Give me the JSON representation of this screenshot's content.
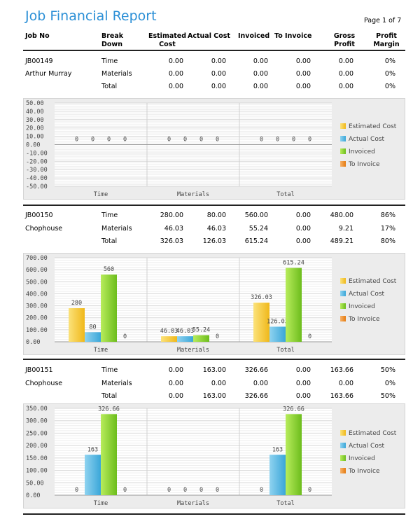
{
  "report": {
    "title": "Job Financial Report",
    "page": "Page 1 of 7"
  },
  "columns": [
    "Job No",
    "Break Down",
    "Estimated Cost",
    "Actual Cost",
    "Invoiced",
    "To Invoice",
    "Gross Profit",
    "Profit Margin"
  ],
  "jobs": [
    {
      "job_no": "JB00149",
      "client": "Arthur Murray",
      "rows": [
        {
          "breakdown": "Time",
          "est": "0.00",
          "act": "0.00",
          "inv": "0.00",
          "toinv": "0.00",
          "gp": "0.00",
          "pm": "0%"
        },
        {
          "breakdown": "Materials",
          "est": "0.00",
          "act": "0.00",
          "inv": "0.00",
          "toinv": "0.00",
          "gp": "0.00",
          "pm": "0%"
        },
        {
          "breakdown": "Total",
          "est": "0.00",
          "act": "0.00",
          "inv": "0.00",
          "toinv": "0.00",
          "gp": "0.00",
          "pm": "0%"
        }
      ]
    },
    {
      "job_no": "JB00150",
      "client": "Chophouse",
      "rows": [
        {
          "breakdown": "Time",
          "est": "280.00",
          "act": "80.00",
          "inv": "560.00",
          "toinv": "0.00",
          "gp": "480.00",
          "pm": "86%"
        },
        {
          "breakdown": "Materials",
          "est": "46.03",
          "act": "46.03",
          "inv": "55.24",
          "toinv": "0.00",
          "gp": "9.21",
          "pm": "17%"
        },
        {
          "breakdown": "Total",
          "est": "326.03",
          "act": "126.03",
          "inv": "615.24",
          "toinv": "0.00",
          "gp": "489.21",
          "pm": "80%"
        }
      ]
    },
    {
      "job_no": "JB00151",
      "client": "Chophouse",
      "rows": [
        {
          "breakdown": "Time",
          "est": "0.00",
          "act": "163.00",
          "inv": "326.66",
          "toinv": "0.00",
          "gp": "163.66",
          "pm": "50%"
        },
        {
          "breakdown": "Materials",
          "est": "0.00",
          "act": "0.00",
          "inv": "0.00",
          "toinv": "0.00",
          "gp": "0.00",
          "pm": "0%"
        },
        {
          "breakdown": "Total",
          "est": "0.00",
          "act": "163.00",
          "inv": "326.66",
          "toinv": "0.00",
          "gp": "163.66",
          "pm": "50%"
        }
      ]
    }
  ],
  "chart_data": [
    {
      "type": "bar",
      "categories": [
        "Time",
        "Materials",
        "Total"
      ],
      "series": [
        {
          "name": "Estimated Cost",
          "values": [
            0,
            0,
            0
          ]
        },
        {
          "name": "Actual Cost",
          "values": [
            0,
            0,
            0
          ]
        },
        {
          "name": "Invoiced",
          "values": [
            0,
            0,
            0
          ]
        },
        {
          "name": "To Invoice",
          "values": [
            0,
            0,
            0
          ]
        }
      ],
      "ylim": [
        -50,
        50
      ],
      "yticks": [
        "50.00",
        "40.00",
        "30.00",
        "20.00",
        "10.00",
        "0.00",
        "-10.00",
        "-20.00",
        "-30.00",
        "-40.00",
        "-50.00"
      ],
      "data_labels": [
        [
          "0",
          "0",
          "0",
          "0"
        ],
        [
          "0",
          "0",
          "0",
          "0"
        ],
        [
          "0",
          "0",
          "0",
          "0"
        ]
      ],
      "legend": "right",
      "grid": true
    },
    {
      "type": "bar",
      "categories": [
        "Time",
        "Materials",
        "Total"
      ],
      "series": [
        {
          "name": "Estimated Cost",
          "values": [
            280,
            46.03,
            326.03
          ]
        },
        {
          "name": "Actual Cost",
          "values": [
            80,
            46.03,
            126.03
          ]
        },
        {
          "name": "Invoiced",
          "values": [
            560,
            55.24,
            615.24
          ]
        },
        {
          "name": "To Invoice",
          "values": [
            0,
            0,
            0
          ]
        }
      ],
      "ylim": [
        0,
        700
      ],
      "yticks": [
        "700.00",
        "600.00",
        "500.00",
        "400.00",
        "300.00",
        "200.00",
        "100.00",
        "0.00"
      ],
      "data_labels": [
        [
          "280",
          "80",
          "560",
          "0"
        ],
        [
          "46.03",
          "46.03",
          "55.24",
          "0"
        ],
        [
          "326.03",
          "126.03",
          "615.24",
          "0"
        ]
      ],
      "legend": "right",
      "grid": true
    },
    {
      "type": "bar",
      "categories": [
        "Time",
        "Materials",
        "Total"
      ],
      "series": [
        {
          "name": "Estimated Cost",
          "values": [
            0,
            0,
            0
          ]
        },
        {
          "name": "Actual Cost",
          "values": [
            163,
            0,
            163
          ]
        },
        {
          "name": "Invoiced",
          "values": [
            326.66,
            0,
            326.66
          ]
        },
        {
          "name": "To Invoice",
          "values": [
            0,
            0,
            0
          ]
        }
      ],
      "ylim": [
        0,
        350
      ],
      "yticks": [
        "350.00",
        "300.00",
        "250.00",
        "200.00",
        "150.00",
        "100.00",
        "50.00",
        "0.00"
      ],
      "data_labels": [
        [
          "0",
          "163",
          "326.66",
          "0"
        ],
        [
          "0",
          "0",
          "0",
          "0"
        ],
        [
          "0",
          "163",
          "326.66",
          "0"
        ]
      ],
      "legend": "right",
      "grid": true
    }
  ],
  "colors": {
    "title": "#2b8fd6",
    "estimated": "#f4c430",
    "actual": "#4fb3e0",
    "invoiced": "#7fcc2a",
    "to_invoice": "#f08a1c"
  }
}
